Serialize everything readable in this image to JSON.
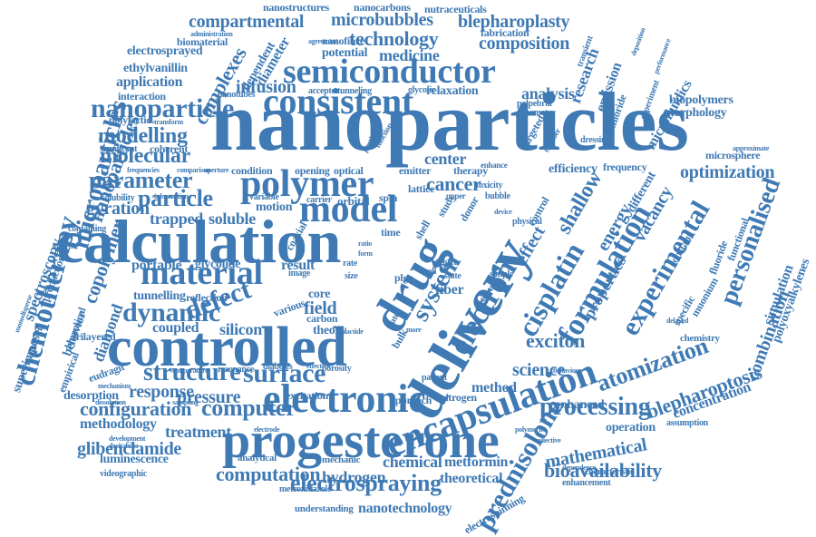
{
  "color": "#3f7ab4",
  "dark_color": "#2f5f8f",
  "words": [
    {
      "text": "nanoparticles",
      "angle": 0
    },
    {
      "text": "calculation",
      "angle": 0
    },
    {
      "text": "controlled",
      "angle": 0
    },
    {
      "text": "progesterone",
      "angle": 0
    },
    {
      "text": "delivery",
      "angle": -60
    },
    {
      "text": "drug",
      "angle": -60
    },
    {
      "text": "encapsulation",
      "angle": -20
    },
    {
      "text": "electronic",
      "angle": 0
    },
    {
      "text": "semiconductor",
      "angle": 0
    },
    {
      "text": "consistent",
      "angle": 0
    },
    {
      "text": "nanoparticle",
      "angle": 0
    },
    {
      "text": "polymer",
      "angle": 0
    },
    {
      "text": "model",
      "angle": 0
    },
    {
      "text": "material",
      "angle": 0
    },
    {
      "text": "dynamic",
      "angle": 0
    },
    {
      "text": "defect",
      "angle": -20
    },
    {
      "text": "surface",
      "angle": 0
    },
    {
      "text": "structure",
      "angle": 0
    },
    {
      "text": "computer",
      "angle": 0
    },
    {
      "text": "chemotherapy",
      "angle": -75
    },
    {
      "text": "electrospraying",
      "angle": 0
    },
    {
      "text": "prednisolone",
      "angle": -60
    },
    {
      "text": "formulation",
      "angle": -60
    },
    {
      "text": "cisplatin",
      "angle": -60
    },
    {
      "text": "experimental",
      "angle": -60
    },
    {
      "text": "personalised",
      "angle": -70
    },
    {
      "text": "atomization",
      "angle": -20
    },
    {
      "text": "blepharoptosis",
      "angle": -20
    },
    {
      "text": "processing",
      "angle": 0
    },
    {
      "text": "exciton",
      "angle": 0
    },
    {
      "text": "electron",
      "angle": -60
    },
    {
      "text": "system",
      "angle": -60
    },
    {
      "text": "modelling",
      "angle": 0
    },
    {
      "text": "molecular",
      "angle": 0
    },
    {
      "text": "parameter",
      "angle": 0
    },
    {
      "text": "particle",
      "angle": 0
    },
    {
      "text": "gyration",
      "angle": 0
    },
    {
      "text": "trapped",
      "angle": 0
    },
    {
      "text": "soluble",
      "angle": 0
    },
    {
      "text": "analysis",
      "angle": 0
    },
    {
      "text": "microbubbles",
      "angle": 0
    },
    {
      "text": "compartmental",
      "angle": 0
    },
    {
      "text": "blepharoplasty",
      "angle": 0
    },
    {
      "text": "technology",
      "angle": 0
    },
    {
      "text": "composition",
      "angle": 0
    },
    {
      "text": "medicine",
      "angle": 0
    },
    {
      "text": "complexes",
      "angle": -60
    },
    {
      "text": "microparticles",
      "angle": -75
    },
    {
      "text": "nanoparticles",
      "angle": -70
    },
    {
      "text": "copolymer",
      "angle": -70
    },
    {
      "text": "spectroscopy",
      "angle": -70
    },
    {
      "text": "configuration",
      "angle": 0
    },
    {
      "text": "glibenclamide",
      "angle": 0
    },
    {
      "text": "computation",
      "angle": 0
    },
    {
      "text": "mathematical",
      "angle": -10
    },
    {
      "text": "bioavailability",
      "angle": 0
    },
    {
      "text": "concentration",
      "angle": -20
    },
    {
      "text": "combination",
      "angle": -70
    },
    {
      "text": "simulation",
      "angle": -70
    },
    {
      "text": "polyoxyalkylenes",
      "angle": -70
    },
    {
      "text": "optimization",
      "angle": 0
    },
    {
      "text": "microfluidics",
      "angle": -60
    },
    {
      "text": "shallow",
      "angle": -60
    },
    {
      "text": "energy",
      "angle": -60
    },
    {
      "text": "vacancy",
      "angle": -60
    },
    {
      "text": "properties",
      "angle": -60
    },
    {
      "text": "effect",
      "angle": -60
    },
    {
      "text": "cancer",
      "angle": 0
    },
    {
      "text": "center",
      "angle": 0
    },
    {
      "text": "pressure",
      "angle": 0
    },
    {
      "text": "response",
      "angle": 0
    },
    {
      "text": "methodology",
      "angle": 0
    },
    {
      "text": "treatment",
      "angle": 0
    },
    {
      "text": "hydrogen",
      "angle": 0
    },
    {
      "text": "chemical",
      "angle": 0
    },
    {
      "text": "metformin",
      "angle": 0
    },
    {
      "text": "theoretical",
      "angle": 0
    },
    {
      "text": "nanotechnology",
      "angle": 0
    },
    {
      "text": "electrospinning",
      "angle": -30
    },
    {
      "text": "science",
      "angle": 0
    },
    {
      "text": "method",
      "angle": 0
    },
    {
      "text": "fiber",
      "angle": 0
    },
    {
      "text": "field",
      "angle": 0
    },
    {
      "text": "silicon",
      "angle": 0
    },
    {
      "text": "coupled",
      "angle": 0
    },
    {
      "text": "diamond",
      "angle": -70
    },
    {
      "text": "behavior",
      "angle": -70
    },
    {
      "text": "desorption",
      "angle": 0
    },
    {
      "text": "eudragit",
      "angle": -20
    },
    {
      "text": "luminescence",
      "angle": 0
    },
    {
      "text": "portable",
      "angle": 0
    },
    {
      "text": "tunnelling",
      "angle": 0
    },
    {
      "text": "reflection",
      "angle": 0
    },
    {
      "text": "glycolide",
      "angle": 0
    },
    {
      "text": "result",
      "angle": 0
    },
    {
      "text": "infusion",
      "angle": 0
    },
    {
      "text": "diameter",
      "angle": -60
    },
    {
      "text": "dependent",
      "angle": -60
    },
    {
      "text": "application",
      "angle": 0
    },
    {
      "text": "interaction",
      "angle": 0
    },
    {
      "text": "ethylvanillin",
      "angle": 0
    },
    {
      "text": "electrosprayed",
      "angle": 0
    },
    {
      "text": "biomaterial",
      "angle": 0
    },
    {
      "text": "nanostructures",
      "angle": 0
    },
    {
      "text": "nanocarbons",
      "angle": 0
    },
    {
      "text": "nutraceuticals",
      "angle": 0
    },
    {
      "text": "nanofibre",
      "angle": 0
    },
    {
      "text": "potential",
      "angle": 0
    },
    {
      "text": "fabrication",
      "angle": 0
    },
    {
      "text": "research",
      "angle": -70
    },
    {
      "text": "emission",
      "angle": -70
    },
    {
      "text": "biopolymers",
      "angle": 0
    },
    {
      "text": "morphology",
      "angle": 0
    },
    {
      "text": "microsphere",
      "angle": 0
    },
    {
      "text": "efficiency",
      "angle": 0
    },
    {
      "text": "frequency",
      "angle": 0
    },
    {
      "text": "relaxation",
      "angle": 0
    },
    {
      "text": "polylactic",
      "angle": 0
    },
    {
      "text": "enhanced",
      "angle": 0
    },
    {
      "text": "operation",
      "angle": 0
    },
    {
      "text": "characteristic",
      "angle": 0
    },
    {
      "text": "enhancement",
      "angle": 0
    },
    {
      "text": "assumption",
      "angle": 0
    },
    {
      "text": "chemistry",
      "angle": 0
    },
    {
      "text": "nitrogen",
      "angle": 0
    },
    {
      "text": "approach",
      "angle": 0
    },
    {
      "text": "excitation",
      "angle": 0
    },
    {
      "text": "diabetes",
      "angle": 0
    },
    {
      "text": "porosity",
      "angle": 0
    },
    {
      "text": "resonance",
      "angle": 0
    },
    {
      "text": "mechanic",
      "angle": 0
    },
    {
      "text": "analytical",
      "angle": 0
    },
    {
      "text": "videographic",
      "angle": 0
    },
    {
      "text": "metronidazole",
      "angle": 0
    },
    {
      "text": "understanding",
      "angle": 0
    },
    {
      "text": "superimposed",
      "angle": -70
    },
    {
      "text": "trilayered",
      "angle": 0
    },
    {
      "text": "empirical",
      "angle": -70
    },
    {
      "text": "dynamical",
      "angle": -70
    },
    {
      "text": "production",
      "angle": -70
    },
    {
      "text": "containing",
      "angle": 0
    },
    {
      "text": "solubility",
      "angle": 0
    },
    {
      "text": "significant",
      "angle": 0
    },
    {
      "text": "coherent",
      "angle": 0
    },
    {
      "text": "condition",
      "angle": 0
    },
    {
      "text": "opening",
      "angle": 0
    },
    {
      "text": "optical",
      "angle": 0
    },
    {
      "text": "emitter",
      "angle": 0
    },
    {
      "text": "therapy",
      "angle": 0
    },
    {
      "text": "orbital",
      "angle": 0
    },
    {
      "text": "spin",
      "angle": 0
    },
    {
      "text": "lattice",
      "angle": 0
    },
    {
      "text": "motion",
      "angle": 0
    },
    {
      "text": "variable",
      "angle": 0
    },
    {
      "text": "carrier",
      "angle": 0
    },
    {
      "text": "core",
      "angle": 0
    },
    {
      "text": "carbon",
      "angle": 0
    },
    {
      "text": "theory",
      "angle": 0
    },
    {
      "text": "various",
      "angle": -20
    },
    {
      "text": "gate",
      "angle": 0
    },
    {
      "text": "state",
      "angle": 0
    },
    {
      "text": "plga",
      "angle": 0
    },
    {
      "text": "cell",
      "angle": 0
    },
    {
      "text": "time",
      "angle": 0
    },
    {
      "text": "shell",
      "angle": -60
    },
    {
      "text": "study",
      "angle": -60
    },
    {
      "text": "nanotubes",
      "angle": 0
    },
    {
      "text": "tunneling",
      "angle": 0
    },
    {
      "text": "acceptor",
      "angle": 0
    },
    {
      "text": "glycolic",
      "angle": 0
    },
    {
      "text": "palpebral",
      "angle": 0
    },
    {
      "text": "geometry",
      "angle": 0
    },
    {
      "text": "physical",
      "angle": 0
    },
    {
      "text": "chloride",
      "angle": -70
    },
    {
      "text": "experiment",
      "angle": -70
    },
    {
      "text": "dressing",
      "angle": 0
    },
    {
      "text": "approximate",
      "angle": 0
    },
    {
      "text": "toxicity",
      "angle": 0
    },
    {
      "text": "bubble",
      "angle": 0
    },
    {
      "text": "simple",
      "angle": 0
    },
    {
      "text": "single",
      "angle": 0
    },
    {
      "text": "patient",
      "angle": 0
    },
    {
      "text": "fluoride",
      "angle": -70
    },
    {
      "text": "functional",
      "angle": -70
    },
    {
      "text": "muonium",
      "angle": -60
    },
    {
      "text": "constant",
      "angle": -60
    },
    {
      "text": "different",
      "angle": -60
    },
    {
      "text": "control",
      "angle": -60
    },
    {
      "text": "specific",
      "angle": -60
    },
    {
      "text": "delayed",
      "angle": 0
    },
    {
      "text": "polymeric",
      "angle": 0
    },
    {
      "text": "collective",
      "angle": 0
    },
    {
      "text": "dependence",
      "angle": 0
    },
    {
      "text": "development",
      "angle": 0
    },
    {
      "text": "decitabine",
      "angle": 0
    },
    {
      "text": "electrode",
      "angle": 0
    },
    {
      "text": "sampling",
      "angle": 0
    },
    {
      "text": "dissolution",
      "angle": 0
    },
    {
      "text": "mechanism",
      "angle": 0
    },
    {
      "text": "behaviour",
      "angle": 0
    },
    {
      "text": "monodisperse",
      "angle": -70
    },
    {
      "text": "influence",
      "angle": 0
    },
    {
      "text": "agreement",
      "angle": 0
    },
    {
      "text": "administration",
      "angle": 0
    },
    {
      "text": "deposition",
      "angle": -70
    },
    {
      "text": "performance",
      "angle": -70
    },
    {
      "text": "transient",
      "angle": -70
    },
    {
      "text": "transform",
      "angle": 0
    },
    {
      "text": "aperture",
      "angle": 0
    },
    {
      "text": "comparison",
      "angle": 0
    },
    {
      "text": "frequencies",
      "angle": 0
    },
    {
      "text": "information",
      "angle": 0
    },
    {
      "text": "temperature",
      "angle": 0
    },
    {
      "text": "targeted",
      "angle": -60
    },
    {
      "text": "coaxial",
      "angle": -60
    },
    {
      "text": "image",
      "angle": 0
    },
    {
      "text": "rate",
      "angle": 0
    },
    {
      "text": "size",
      "angle": 0
    },
    {
      "text": "ratio",
      "angle": 0
    },
    {
      "text": "vitro",
      "angle": 0
    },
    {
      "text": "form",
      "angle": 0
    },
    {
      "text": "more",
      "angle": 0
    },
    {
      "text": "bulk",
      "angle": -60
    },
    {
      "text": "water",
      "angle": -60
    },
    {
      "text": "metal",
      "angle": -60
    },
    {
      "text": "donor",
      "angle": -60
    },
    {
      "text": "lactide",
      "angle": 0
    },
    {
      "text": "effective",
      "angle": 0
    },
    {
      "text": "upper",
      "angle": 0
    },
    {
      "text": "device",
      "angle": 0
    },
    {
      "text": "enhance",
      "angle": 0
    },
    {
      "text": "number",
      "angle": -60
    },
    {
      "text": "function",
      "angle": -60
    },
    {
      "text": "particular",
      "angle": -60
    }
  ]
}
